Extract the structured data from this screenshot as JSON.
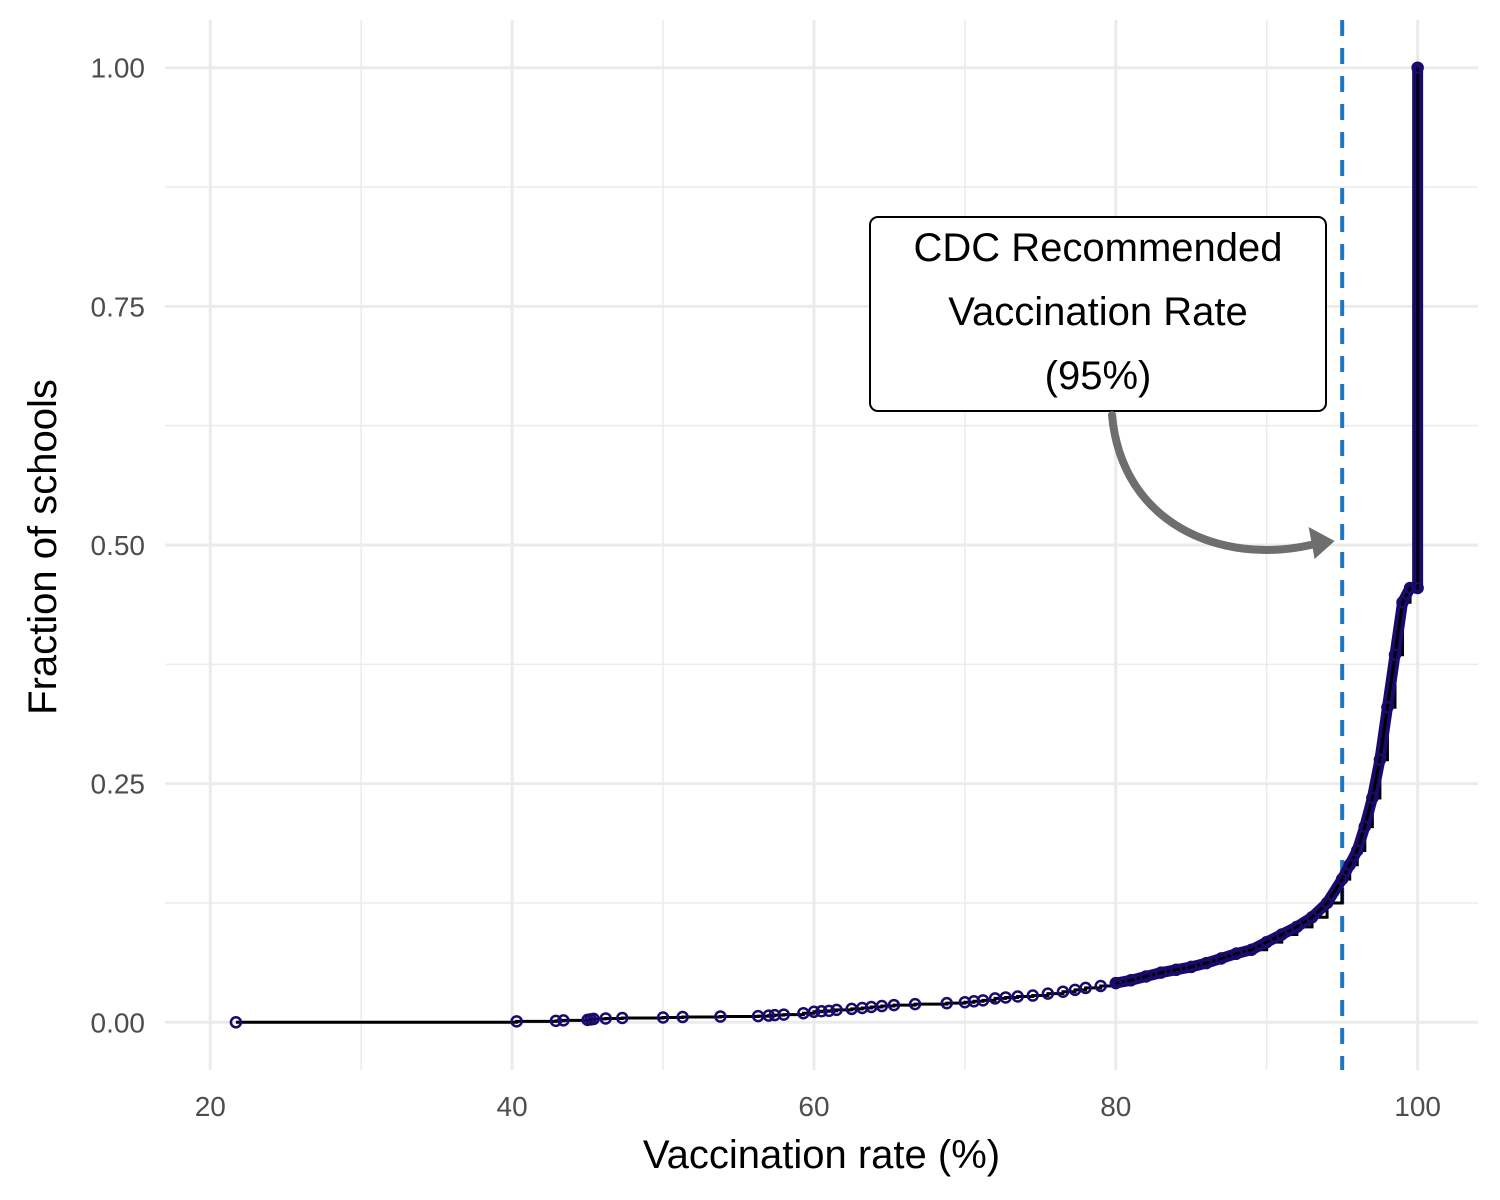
{
  "chart_data": {
    "type": "line",
    "title": "",
    "xlabel": "Vaccination rate (%)",
    "ylabel": "Fraction of schools",
    "xlim": [
      17,
      104
    ],
    "ylim": [
      -0.05,
      1.05
    ],
    "x_ticks": [
      20,
      40,
      60,
      80,
      100
    ],
    "x_tick_labels": [
      "20",
      "40",
      "60",
      "80",
      "100"
    ],
    "y_ticks": [
      0,
      0.25,
      0.5,
      0.75,
      1.0
    ],
    "y_tick_labels": [
      "0.00",
      "0.25",
      "0.50",
      "0.75",
      "1.00"
    ],
    "grid": true,
    "legend": "none",
    "colors": {
      "line": "#000000",
      "points": "#1a0a6e",
      "reference_line": "#1f77c4",
      "arrow": "#6e6e6e"
    },
    "series": [
      {
        "x": [
          21.7,
          40.3,
          42.9,
          43.4,
          45.0,
          45.2,
          45.4,
          46.2,
          47.3,
          50.0,
          51.3,
          53.8,
          56.3,
          57.0,
          57.4,
          58.0,
          59.3,
          60.0,
          60.5,
          61.0,
          61.5,
          62.5,
          63.2,
          63.8,
          64.5,
          65.3,
          66.7,
          68.8,
          70.0,
          70.6,
          71.2,
          72.0,
          72.7,
          73.5,
          74.5,
          75.5,
          76.5,
          77.3,
          78.0,
          79.0,
          80.0,
          81.0,
          82.0,
          83.0,
          84.0,
          85.0,
          86.0,
          87.0,
          88.0,
          89.0,
          90.0,
          91.0,
          92.0,
          93.0,
          94.0,
          95.0,
          95.5,
          96.0,
          96.5,
          97.0,
          97.5,
          98.0,
          98.5,
          99.0,
          99.5,
          100.0,
          100.0
        ],
        "y": [
          0.0,
          0.001,
          0.0015,
          0.002,
          0.0025,
          0.003,
          0.0035,
          0.004,
          0.0045,
          0.005,
          0.0055,
          0.006,
          0.0065,
          0.007,
          0.0075,
          0.008,
          0.0095,
          0.011,
          0.0115,
          0.012,
          0.013,
          0.014,
          0.015,
          0.016,
          0.017,
          0.018,
          0.019,
          0.02,
          0.021,
          0.022,
          0.023,
          0.025,
          0.026,
          0.027,
          0.028,
          0.03,
          0.032,
          0.034,
          0.036,
          0.038,
          0.041,
          0.044,
          0.048,
          0.052,
          0.055,
          0.058,
          0.062,
          0.067,
          0.072,
          0.076,
          0.084,
          0.092,
          0.1,
          0.11,
          0.125,
          0.15,
          0.165,
          0.18,
          0.205,
          0.235,
          0.275,
          0.33,
          0.385,
          0.44,
          0.455,
          0.455,
          1.0
        ]
      }
    ],
    "reference_line": {
      "axis": "x",
      "value": 95,
      "style": "dashed"
    },
    "annotation": {
      "lines": [
        "CDC Recommended",
        "Vaccination Rate",
        "(95%)"
      ],
      "anchor_x": 80.5,
      "anchor_y": 0.72,
      "arrow_to": [
        94.5,
        0.5
      ]
    }
  }
}
